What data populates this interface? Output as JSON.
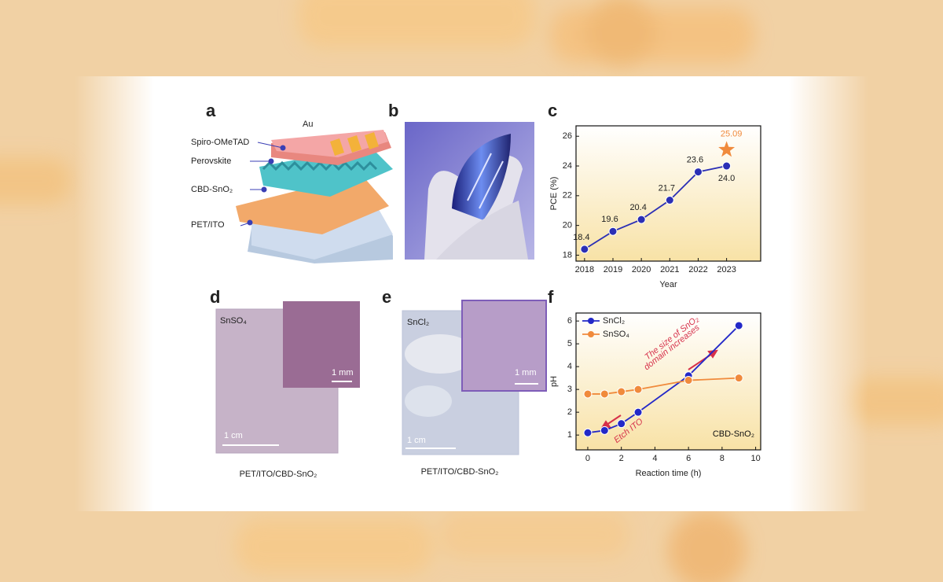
{
  "figure": {
    "panels": [
      "a",
      "b",
      "c",
      "d",
      "e",
      "f"
    ],
    "a_labels": [
      "Spiro-OMeTAD",
      "Au",
      "Perovskite",
      "CBD-SnO₂",
      "PET/ITO"
    ],
    "d": {
      "sample": "SnSO₄",
      "inset_scale": "1 mm",
      "scale": "1 cm",
      "caption": "PET/ITO/CBD-SnO₂"
    },
    "e": {
      "sample": "SnCl₂",
      "inset_scale": "1 mm",
      "scale": "1 cm",
      "caption": "PET/ITO/CBD-SnO₂"
    }
  },
  "chart_data": [
    {
      "type": "line",
      "xlabel": "Year",
      "ylabel": "PCE (%)",
      "x": [
        2018,
        2019,
        2020,
        2021,
        2022,
        2023
      ],
      "series": [
        {
          "color": "#2b2fb5",
          "values": [
            18.4,
            19.6,
            20.4,
            21.7,
            23.6,
            24.0
          ],
          "value_labels": [
            "18.4",
            "19.6",
            "20.4",
            "21.7",
            "23.6",
            "24.0"
          ]
        }
      ],
      "highlight": {
        "x": 2023,
        "value": 25.09,
        "color": "#f08a3c"
      },
      "xlim": [
        2017.7,
        2024.2
      ],
      "xticks": [
        2018,
        2019,
        2020,
        2021,
        2022,
        2023
      ],
      "ylim": [
        17.6,
        26.7
      ],
      "yticks": [
        18,
        20,
        22,
        24,
        26
      ]
    },
    {
      "type": "line",
      "xlabel": "Reaction time (h)",
      "ylabel": "pH",
      "x": [
        0,
        1,
        2,
        3,
        6,
        9
      ],
      "series": [
        {
          "name": "SnCl₂",
          "color": "#2328c8",
          "values": [
            1.1,
            1.2,
            1.5,
            2.0,
            3.6,
            5.8
          ]
        },
        {
          "name": "SnSO₄",
          "color": "#f08a3c",
          "values": [
            2.8,
            2.8,
            2.9,
            3.0,
            3.4,
            3.5
          ]
        }
      ],
      "annotations": [
        [
          "The size of SnO₂",
          "domain increases"
        ],
        [
          "Etch ITO"
        ],
        [
          "CBD-SnO₂"
        ]
      ],
      "annotation_color": "#d6304a",
      "xlim": [
        -0.7,
        10.3
      ],
      "xticks": [
        0,
        2,
        4,
        6,
        8,
        10
      ],
      "ylim": [
        0.35,
        6.35
      ],
      "yticks": [
        1,
        2,
        3,
        4,
        5,
        6
      ]
    }
  ]
}
